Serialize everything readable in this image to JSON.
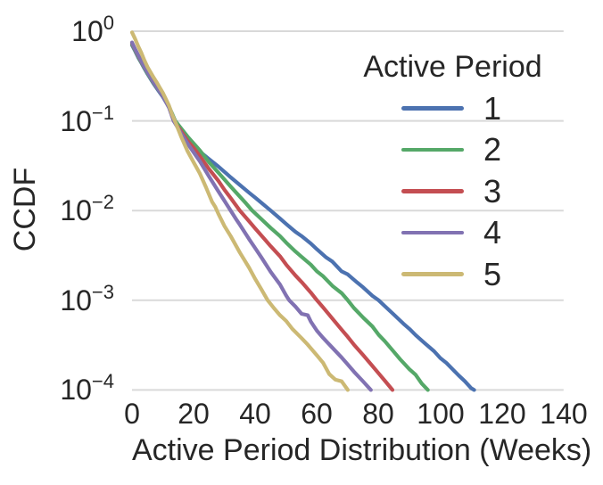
{
  "chart_data": {
    "type": "line",
    "title": "",
    "xlabel": "Active Period Distribution (Weeks)",
    "ylabel": "CCDF",
    "x_axis": {
      "min": 0,
      "max": 140,
      "ticks": [
        0,
        20,
        40,
        60,
        80,
        100,
        120,
        140
      ]
    },
    "y_axis": {
      "scale": "log10",
      "min_exp": -4,
      "max_exp": 0,
      "tick_exponents": [
        "0",
        "−1",
        "−2",
        "−3",
        "−4"
      ],
      "tick_values": [
        1,
        0.1,
        0.01,
        0.001,
        0.0001
      ]
    },
    "grid": {
      "horizontal": true,
      "vertical": false,
      "color": "#d9d9d9"
    },
    "legend": {
      "title": "Active Period",
      "position": "upper right"
    },
    "text_color": "#262626",
    "series": [
      {
        "name": "1",
        "color": "#4C72B0",
        "points": [
          [
            0,
            0.7
          ],
          [
            1,
            0.6
          ],
          [
            2,
            0.51
          ],
          [
            3,
            0.445
          ],
          [
            4,
            0.385
          ],
          [
            5,
            0.335
          ],
          [
            6,
            0.295
          ],
          [
            7,
            0.26
          ],
          [
            8,
            0.232
          ],
          [
            9,
            0.207
          ],
          [
            10,
            0.185
          ],
          [
            11,
            0.162
          ],
          [
            12,
            0.142
          ],
          [
            13,
            0.12
          ],
          [
            14,
            0.1
          ],
          [
            16,
            0.08
          ],
          [
            18,
            0.065
          ],
          [
            20,
            0.053
          ],
          [
            22,
            0.0455
          ],
          [
            25,
            0.0375
          ],
          [
            28,
            0.031
          ],
          [
            30,
            0.027
          ],
          [
            32,
            0.0235
          ],
          [
            35,
            0.0193
          ],
          [
            38,
            0.0158
          ],
          [
            40,
            0.0139
          ],
          [
            42,
            0.0122
          ],
          [
            45,
            0.01
          ],
          [
            48,
            0.00815
          ],
          [
            50,
            0.0071
          ],
          [
            53,
            0.0058
          ],
          [
            55,
            0.0052
          ],
          [
            58,
            0.0043
          ],
          [
            60,
            0.0037
          ],
          [
            63,
            0.003
          ],
          [
            65,
            0.0027
          ],
          [
            68,
            0.0021
          ],
          [
            70,
            0.00194
          ],
          [
            73,
            0.00158
          ],
          [
            75,
            0.00139
          ],
          [
            78,
            0.00112
          ],
          [
            80,
            0.001
          ],
          [
            82,
            0.00086
          ],
          [
            85,
            0.00069
          ],
          [
            88,
            0.00055
          ],
          [
            90,
            0.00048
          ],
          [
            92,
            0.00041
          ],
          [
            95,
            0.000331
          ],
          [
            98,
            0.00027
          ],
          [
            100,
            0.000227
          ],
          [
            102,
            0.0002
          ],
          [
            104,
            0.00017
          ],
          [
            106,
            0.000145
          ],
          [
            108,
            0.000125
          ],
          [
            110,
            0.000105
          ],
          [
            111,
            0.0001
          ]
        ]
      },
      {
        "name": "2",
        "color": "#55A868",
        "points": [
          [
            0,
            0.72
          ],
          [
            1,
            0.61
          ],
          [
            2,
            0.52
          ],
          [
            3,
            0.45
          ],
          [
            4,
            0.39
          ],
          [
            5,
            0.34
          ],
          [
            7,
            0.265
          ],
          [
            10,
            0.19
          ],
          [
            12,
            0.145
          ],
          [
            14,
            0.1
          ],
          [
            16,
            0.082
          ],
          [
            18,
            0.067
          ],
          [
            20,
            0.056
          ],
          [
            22,
            0.047
          ],
          [
            25,
            0.0345
          ],
          [
            28,
            0.0265
          ],
          [
            30,
            0.0222
          ],
          [
            32,
            0.0185
          ],
          [
            35,
            0.0143
          ],
          [
            37,
            0.012
          ],
          [
            39,
            0.01
          ],
          [
            42,
            0.008
          ],
          [
            45,
            0.0064
          ],
          [
            48,
            0.0052
          ],
          [
            50,
            0.0044
          ],
          [
            53,
            0.0035
          ],
          [
            55,
            0.00305
          ],
          [
            58,
            0.0025
          ],
          [
            60,
            0.0021
          ],
          [
            62,
            0.00185
          ],
          [
            65,
            0.00145
          ],
          [
            68,
            0.0012
          ],
          [
            70,
            0.001
          ],
          [
            72,
            0.00082
          ],
          [
            75,
            0.00064
          ],
          [
            78,
            0.00051
          ],
          [
            80,
            0.000412
          ],
          [
            82,
            0.00035
          ],
          [
            85,
            0.000265
          ],
          [
            87,
            0.00022
          ],
          [
            90,
            0.00017
          ],
          [
            92,
            0.000148
          ],
          [
            94,
            0.000118
          ],
          [
            96,
            0.0001
          ]
        ]
      },
      {
        "name": "3",
        "color": "#C44E52",
        "points": [
          [
            0,
            0.74
          ],
          [
            1,
            0.625
          ],
          [
            2,
            0.535
          ],
          [
            3,
            0.46
          ],
          [
            4,
            0.4
          ],
          [
            5,
            0.35
          ],
          [
            7,
            0.27
          ],
          [
            10,
            0.19
          ],
          [
            12,
            0.143
          ],
          [
            13.5,
            0.1
          ],
          [
            16,
            0.076
          ],
          [
            18,
            0.06
          ],
          [
            20,
            0.05
          ],
          [
            22,
            0.0405
          ],
          [
            25,
            0.029
          ],
          [
            28,
            0.0215
          ],
          [
            30,
            0.017
          ],
          [
            32,
            0.0138
          ],
          [
            35,
            0.01
          ],
          [
            38,
            0.0076
          ],
          [
            40,
            0.0063
          ],
          [
            43,
            0.0048
          ],
          [
            45,
            0.004
          ],
          [
            48,
            0.0031
          ],
          [
            50,
            0.0025
          ],
          [
            53,
            0.00189
          ],
          [
            55,
            0.0016
          ],
          [
            58,
            0.00122
          ],
          [
            60,
            0.001
          ],
          [
            62,
            0.00083
          ],
          [
            65,
            0.000625
          ],
          [
            68,
            0.00047
          ],
          [
            70,
            0.00039
          ],
          [
            72,
            0.00032
          ],
          [
            75,
            0.000244
          ],
          [
            78,
            0.000185
          ],
          [
            80,
            0.000153
          ],
          [
            82,
            0.000127
          ],
          [
            84.5,
            0.0001
          ]
        ]
      },
      {
        "name": "4",
        "color": "#8172B2",
        "points": [
          [
            0,
            0.75
          ],
          [
            1,
            0.63
          ],
          [
            2,
            0.54
          ],
          [
            3,
            0.465
          ],
          [
            4,
            0.4
          ],
          [
            5,
            0.35
          ],
          [
            7,
            0.27
          ],
          [
            10,
            0.19
          ],
          [
            12,
            0.14
          ],
          [
            13.5,
            0.1
          ],
          [
            16,
            0.072
          ],
          [
            18,
            0.056
          ],
          [
            20,
            0.0446
          ],
          [
            22,
            0.0355
          ],
          [
            25,
            0.0239
          ],
          [
            28,
            0.0164
          ],
          [
            30,
            0.0128
          ],
          [
            32,
            0.01
          ],
          [
            34,
            0.0078
          ],
          [
            35,
            0.00695
          ],
          [
            38,
            0.0048
          ],
          [
            40,
            0.0038
          ],
          [
            42,
            0.003
          ],
          [
            45,
            0.00207
          ],
          [
            48,
            0.0015
          ],
          [
            50,
            0.00113
          ],
          [
            51,
            0.001
          ],
          [
            53,
            0.00085
          ],
          [
            55,
            0.000706
          ],
          [
            57,
            0.00068
          ],
          [
            58,
            0.00058
          ],
          [
            60,
            0.000457
          ],
          [
            62,
            0.00038
          ],
          [
            65,
            0.000296
          ],
          [
            68,
            0.00023
          ],
          [
            70,
            0.000192
          ],
          [
            72,
            0.00016
          ],
          [
            75,
            0.000124
          ],
          [
            77.5,
            0.0001
          ]
        ]
      },
      {
        "name": "5",
        "color": "#CCB974",
        "points": [
          [
            0,
            0.97
          ],
          [
            1,
            0.82
          ],
          [
            2,
            0.68
          ],
          [
            3,
            0.575
          ],
          [
            4,
            0.475
          ],
          [
            5,
            0.4
          ],
          [
            6,
            0.35
          ],
          [
            7,
            0.305
          ],
          [
            8,
            0.27
          ],
          [
            9,
            0.235
          ],
          [
            10,
            0.205
          ],
          [
            11,
            0.175
          ],
          [
            12,
            0.148
          ],
          [
            13,
            0.118
          ],
          [
            14,
            0.098
          ],
          [
            16,
            0.066
          ],
          [
            18,
            0.046
          ],
          [
            20,
            0.0345
          ],
          [
            22,
            0.026
          ],
          [
            24,
            0.0182
          ],
          [
            26,
            0.0125
          ],
          [
            27,
            0.011
          ],
          [
            28,
            0.0092
          ],
          [
            30,
            0.0067
          ],
          [
            32,
            0.0052
          ],
          [
            35,
            0.0034
          ],
          [
            38,
            0.0023
          ],
          [
            40,
            0.00172
          ],
          [
            42,
            0.00132
          ],
          [
            44,
            0.001
          ],
          [
            46,
            0.00082
          ],
          [
            48,
            0.00068
          ],
          [
            50,
            0.000588
          ],
          [
            52,
            0.00048
          ],
          [
            55,
            0.000378
          ],
          [
            57,
            0.00032
          ],
          [
            60,
            0.000243
          ],
          [
            62,
            0.0002
          ],
          [
            64,
            0.00015
          ],
          [
            66,
            0.00013
          ],
          [
            68,
            0.000125
          ],
          [
            70,
            0.0001
          ]
        ]
      }
    ]
  }
}
